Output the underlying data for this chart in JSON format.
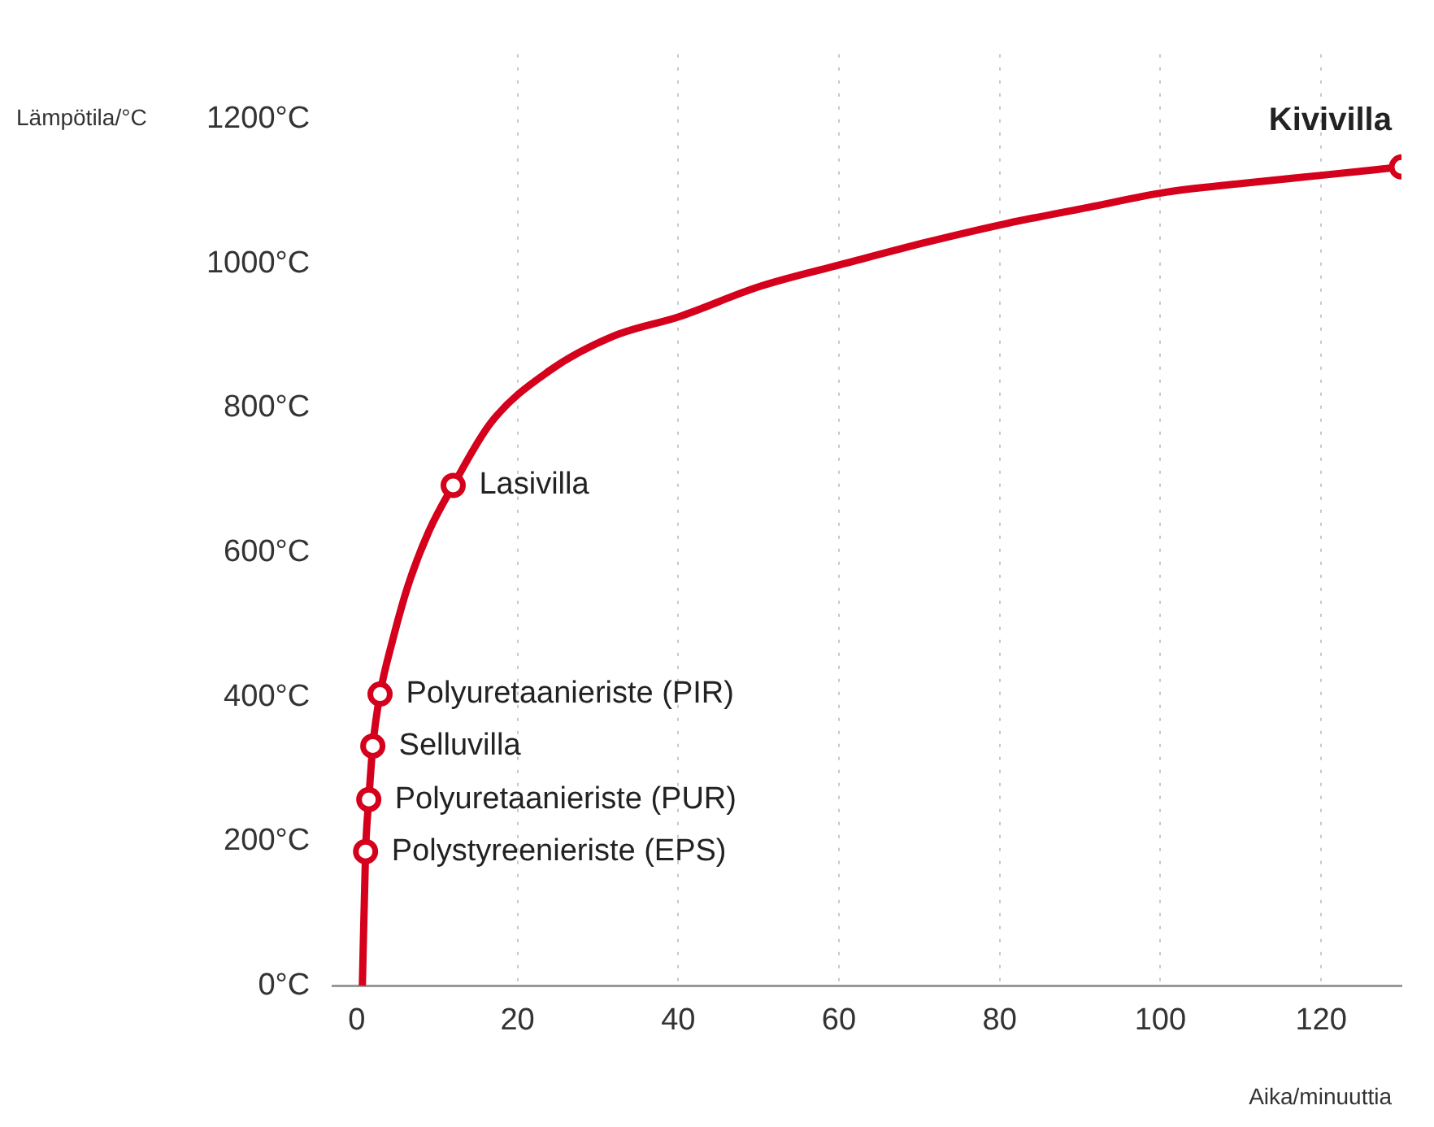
{
  "chart_data": {
    "type": "line",
    "xlabel": "Aika/minuuttia",
    "ylabel": "Lämpötila/°C",
    "xlim": [
      -3,
      130
    ],
    "ylim": [
      0,
      1290
    ],
    "xticks": [
      0,
      20,
      40,
      60,
      80,
      100,
      120
    ],
    "yticks": [
      {
        "value": 0,
        "label": "0°C"
      },
      {
        "value": 200,
        "label": "200°C"
      },
      {
        "value": 400,
        "label": "400°C"
      },
      {
        "value": 600,
        "label": "600°C"
      },
      {
        "value": 800,
        "label": "800°C"
      },
      {
        "value": 1000,
        "label": "1000°C"
      },
      {
        "value": 1200,
        "label": "1200°C"
      }
    ],
    "grid": "x",
    "line_style": "solid",
    "series": [
      {
        "color": "#d5001c",
        "marker": "none",
        "x": [
          0.7,
          1.1,
          1.5,
          2,
          2.9,
          4.5,
          6.4,
          9,
          12,
          16.7,
          24,
          32,
          40.2,
          50,
          61,
          71,
          81,
          91,
          100.7,
          110,
          120.5,
          130
        ],
        "values": [
          0,
          186,
          258,
          332,
          404,
          480,
          555,
          630,
          693,
          780,
          852,
          900,
          927,
          968,
          1001,
          1030,
          1056,
          1078,
          1099,
          1111,
          1123,
          1134
        ]
      },
      {
        "type": "scatter",
        "color": "#d5001c",
        "marker": "circle",
        "x": [
          1.1,
          1.5,
          2,
          2.9,
          12,
          130
        ],
        "values": [
          186,
          258,
          332,
          404,
          693,
          1134
        ]
      }
    ],
    "annotations": [
      {
        "text": "Polystyreenieriste (EPS)",
        "x": 1.1,
        "y": 186
      },
      {
        "text": "Polyuretaanieriste (PUR)",
        "x": 1.5,
        "y": 258
      },
      {
        "text": "Selluvilla",
        "x": 2,
        "y": 332
      },
      {
        "text": "Polyuretaanieriste (PIR)",
        "x": 2.9,
        "y": 404
      },
      {
        "text": "Lasivilla",
        "x": 12,
        "y": 693
      },
      {
        "text": "Kivivilla",
        "x": 130,
        "y": 1134
      }
    ]
  }
}
